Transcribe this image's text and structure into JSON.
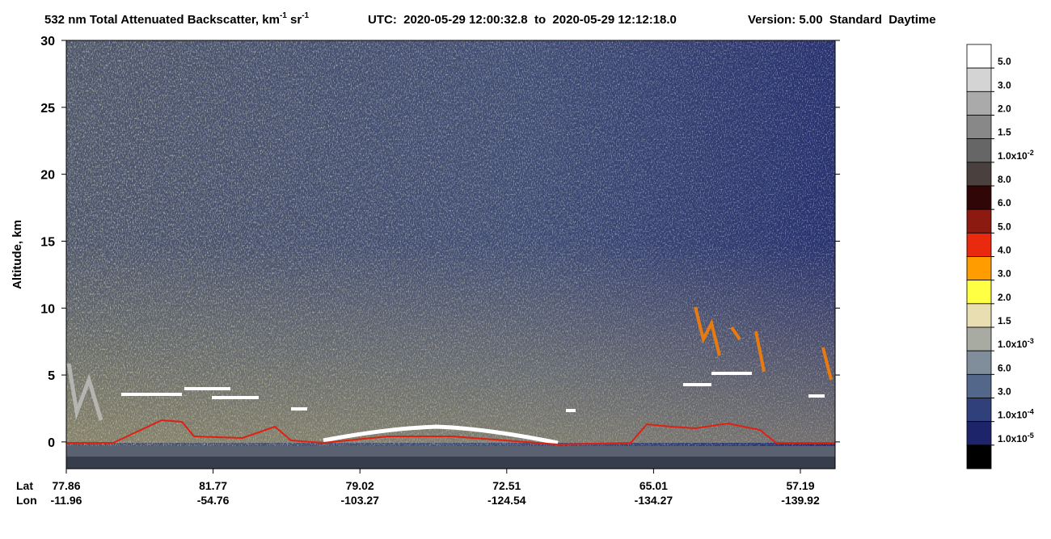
{
  "chart_data": {
    "type": "curtain",
    "title": {
      "text1": "532 nm Total Attenuated Backscatter, km",
      "sup1": "-1",
      "text2": " sr",
      "sup2": "-1",
      "time": "UTC:  2020-05-29 12:00:32.8  to  2020-05-29 12:12:18.0",
      "version": "Version: 5.00  Standard  Daytime"
    },
    "y_label": "Altitude, km",
    "ylim": [
      -2,
      30
    ],
    "yticks": [
      0,
      5,
      10,
      15,
      20,
      25,
      30
    ],
    "x_row_labels": [
      "Lat",
      "Lon"
    ],
    "lat": [
      "77.86",
      "81.77",
      "79.02",
      "72.51",
      "65.01",
      "57.19"
    ],
    "lon": [
      "-11.96",
      "-54.76",
      "-103.27",
      "-124.54",
      "-134.27",
      "-139.92"
    ],
    "colorbar": {
      "colors": [
        "#ffffff",
        "#d4d4d4",
        "#aaaaaa",
        "#888888",
        "#666666",
        "#4a403d",
        "#300606",
        "#8c1a10",
        "#ea2a0e",
        "#ff9d00",
        "#ffff44",
        "#e9ddb2",
        "#a8aba2",
        "#808d9b",
        "#52678a",
        "#2f407a",
        "#1e246a",
        "#000000"
      ],
      "labels": [
        {
          "text": "5.0"
        },
        {
          "text": "3.0"
        },
        {
          "text": "2.0"
        },
        {
          "text": "1.5"
        },
        {
          "text": "1.0x10",
          "sup": "-2"
        },
        {
          "text": "8.0"
        },
        {
          "text": "6.0"
        },
        {
          "text": "5.0"
        },
        {
          "text": "4.0"
        },
        {
          "text": "3.0"
        },
        {
          "text": "2.0"
        },
        {
          "text": "1.5"
        },
        {
          "text": "1.0x10",
          "sup": "-3"
        },
        {
          "text": "6.0"
        },
        {
          "text": "3.0"
        },
        {
          "text": "1.0x10",
          "sup": "-4"
        },
        {
          "text": "1.0x10",
          "sup": "-5"
        }
      ]
    }
  }
}
